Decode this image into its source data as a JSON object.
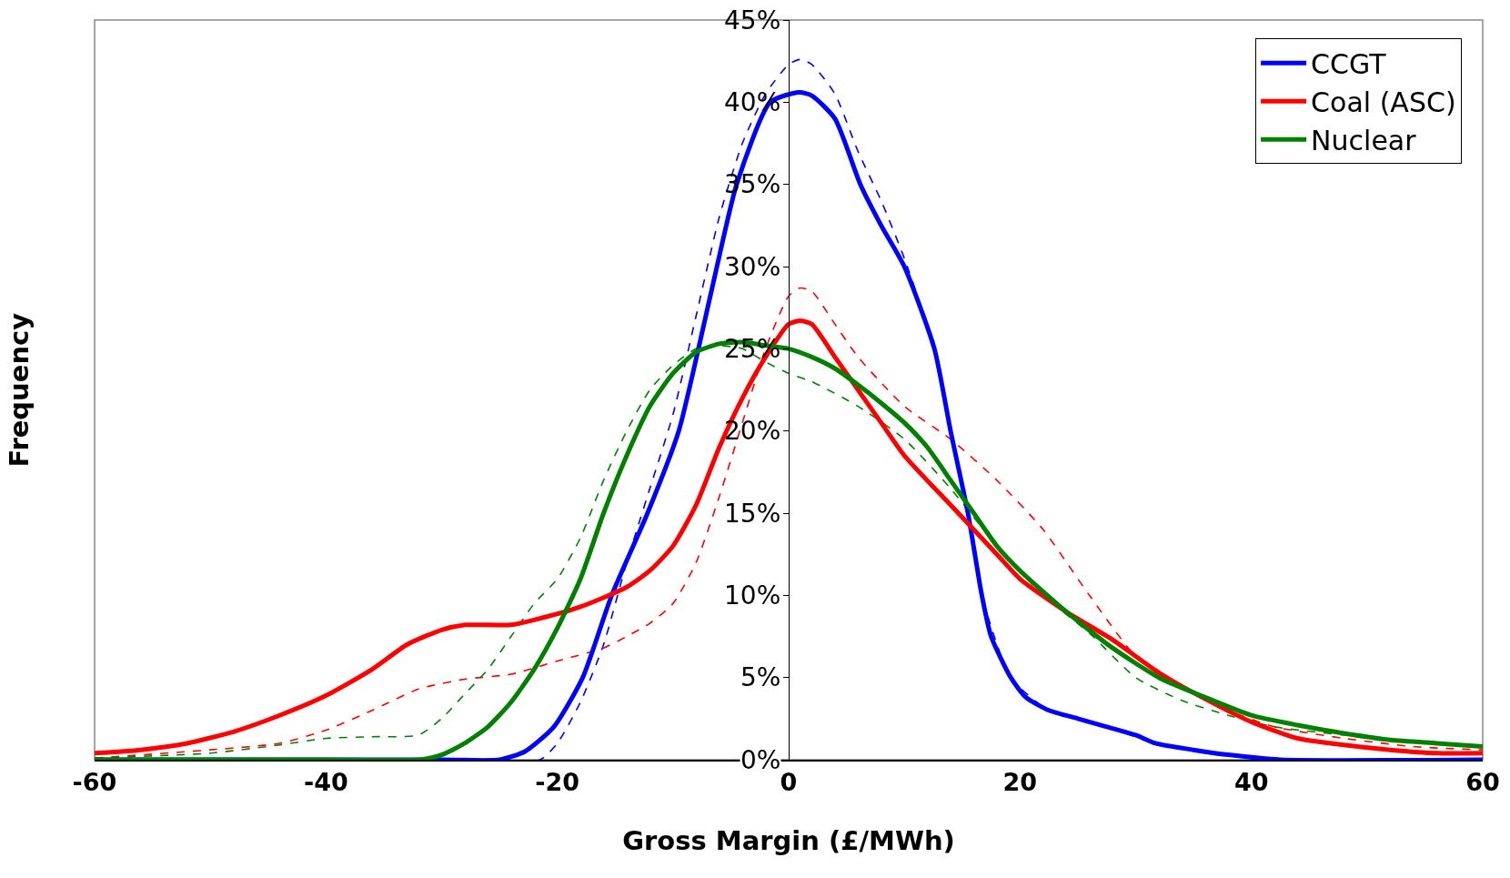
{
  "chart_data": {
    "type": "line",
    "xlabel": "Gross Margin (£/MWh)",
    "ylabel": "Frequency",
    "xlim": [
      -60,
      60
    ],
    "xticks": [
      -60,
      -40,
      -20,
      0,
      20,
      40,
      60
    ],
    "ylim": [
      0,
      45
    ],
    "yticks": [
      {
        "value": 0,
        "label": "0%"
      },
      {
        "value": 5,
        "label": "5%"
      },
      {
        "value": 10,
        "label": "10%"
      },
      {
        "value": 15,
        "label": "15%"
      },
      {
        "value": 20,
        "label": "20%"
      },
      {
        "value": 25,
        "label": "25%"
      },
      {
        "value": 30,
        "label": "30%"
      },
      {
        "value": 35,
        "label": "35%"
      },
      {
        "value": 40,
        "label": "40%"
      },
      {
        "value": 45,
        "label": "45%"
      }
    ],
    "grid": false,
    "legend": "top right",
    "marker": "none",
    "series": [
      {
        "color": "#0000ff",
        "line_style": "dashed",
        "x": [
          -60,
          -30,
          -21.5,
          -20,
          -18,
          -16,
          -14,
          -12,
          -10,
          -8,
          -6,
          -4,
          -2,
          0,
          1,
          2,
          4,
          6,
          8,
          10,
          12.6,
          14,
          15.5,
          16.7,
          19.2,
          22.5,
          27.5,
          31.7,
          38,
          42.5,
          60
        ],
        "values": [
          0,
          0,
          0,
          1,
          3.5,
          7,
          12,
          16.5,
          21,
          27,
          33,
          37.5,
          40.5,
          42.3,
          42.6,
          42.3,
          40.5,
          37,
          34,
          30.5,
          25,
          20,
          15,
          10,
          5,
          3,
          2,
          1,
          0.3,
          0,
          0
        ]
      },
      {
        "color": "#ff0000",
        "line_style": "dashed",
        "x": [
          -60,
          -50,
          -44,
          -40,
          -36,
          -32,
          -28,
          -24,
          -20,
          -16,
          -14,
          -12,
          -10,
          -8,
          -6,
          -4,
          -2,
          0,
          1,
          2,
          4,
          6,
          10,
          14,
          18,
          22,
          26,
          30,
          34,
          38,
          42,
          48,
          54,
          60
        ],
        "values": [
          0.1,
          0.6,
          1,
          1.8,
          3,
          4.3,
          4.9,
          5.2,
          6,
          6.8,
          7.5,
          8.3,
          9.5,
          12,
          16,
          20.5,
          25,
          28.2,
          28.7,
          28.5,
          26.5,
          24.5,
          21.5,
          19.5,
          17,
          14,
          10,
          6.3,
          4.5,
          3,
          2,
          1.3,
          0.8,
          0.6
        ]
      },
      {
        "color": "#008000",
        "line_style": "dashed",
        "x": [
          -60,
          -50,
          -44,
          -40,
          -36,
          -32,
          -30,
          -28,
          -26,
          -24,
          -22,
          -20,
          -18,
          -16,
          -14,
          -12,
          -10,
          -8,
          -6,
          -4,
          -2,
          0,
          2,
          6,
          10,
          14,
          18,
          22,
          26,
          30,
          34,
          38,
          42,
          48,
          54,
          60
        ],
        "values": [
          0.1,
          0.4,
          0.9,
          1.3,
          1.4,
          1.5,
          2.5,
          4,
          5.5,
          7.5,
          9.5,
          11,
          13.5,
          17,
          20,
          22.5,
          24,
          25,
          25.2,
          25,
          24.2,
          23.5,
          23,
          21.5,
          19.5,
          16.5,
          13,
          10,
          7.7,
          5,
          3.6,
          2.7,
          2,
          1.5,
          1.1,
          0.8
        ]
      },
      {
        "name": "CCGT",
        "color": "#0000ff",
        "line_style": "solid",
        "x": [
          -60,
          -30,
          -25,
          -22.8,
          -20.3,
          -17.8,
          -15.3,
          -12.2,
          -9.5,
          -7.8,
          -6.2,
          -4.5,
          -1.6,
          0.9,
          2,
          4,
          6.2,
          8,
          10,
          12.6,
          14,
          15.5,
          16.7,
          17.5,
          19.2,
          20.5,
          22.5,
          25,
          27.5,
          30,
          31.7,
          35,
          38,
          42.5,
          60
        ],
        "values": [
          0,
          0,
          0,
          0.5,
          2,
          5,
          10,
          15,
          20,
          25,
          30,
          35,
          40,
          40.6,
          40.4,
          39,
          35,
          32.5,
          30,
          25,
          20,
          15,
          10,
          7.5,
          5,
          3.8,
          3,
          2.5,
          2,
          1.5,
          1,
          0.6,
          0.3,
          0,
          0
        ]
      },
      {
        "name": "Coal (ASC)",
        "color": "#ff0000",
        "line_style": "solid",
        "x": [
          -60,
          -56,
          -52,
          -48,
          -44,
          -40,
          -36,
          -33,
          -30,
          -28,
          -24,
          -22,
          -18,
          -14,
          -12,
          -10,
          -8,
          -6,
          -4,
          -2,
          0,
          1,
          2,
          4,
          6,
          8,
          10,
          14,
          18,
          20,
          24,
          28,
          32,
          36,
          40,
          44,
          48,
          52,
          56,
          60
        ],
        "values": [
          0.4,
          0.6,
          1,
          1.7,
          2.7,
          3.9,
          5.5,
          7,
          7.9,
          8.2,
          8.2,
          8.5,
          9.3,
          10.5,
          11.5,
          13,
          15.5,
          19,
          22,
          24.5,
          26.5,
          26.7,
          26.5,
          24.5,
          22.5,
          20.5,
          18.5,
          15.5,
          12.5,
          11,
          9,
          7.3,
          5.3,
          3.7,
          2.3,
          1.3,
          0.9,
          0.6,
          0.4,
          0.4
        ]
      },
      {
        "name": "Nuclear",
        "color": "#008000",
        "line_style": "solid",
        "x": [
          -60,
          -40,
          -32,
          -30,
          -28,
          -26,
          -24,
          -22,
          -20,
          -18,
          -16,
          -14,
          -12,
          -10,
          -8,
          -6,
          -4,
          -2,
          0,
          2,
          4,
          6,
          8,
          10,
          12,
          14,
          16,
          18,
          20,
          24,
          28,
          32,
          36,
          40,
          44,
          48,
          52,
          56,
          60
        ],
        "values": [
          0,
          0,
          0,
          0.3,
          1,
          2,
          3.5,
          5.5,
          8,
          11,
          15,
          18.5,
          21.5,
          23.5,
          24.8,
          25.3,
          25.4,
          25.2,
          25,
          24.5,
          23.8,
          22.8,
          21.7,
          20.5,
          19,
          17,
          15,
          13,
          11.5,
          9,
          6.8,
          5,
          3.8,
          2.7,
          2.1,
          1.6,
          1.2,
          1,
          0.8
        ]
      }
    ]
  }
}
